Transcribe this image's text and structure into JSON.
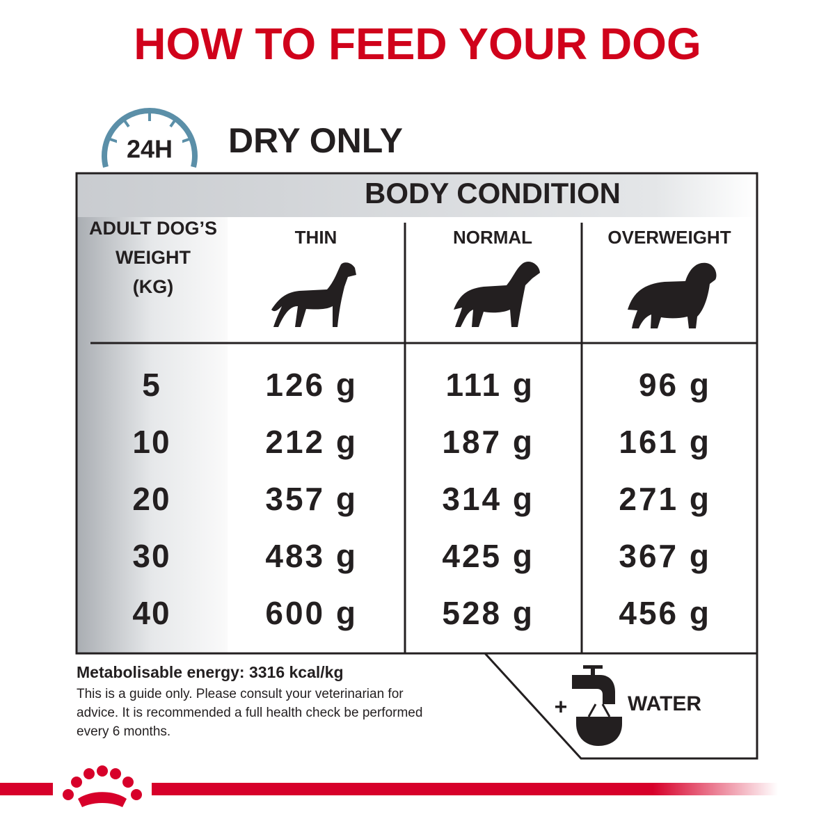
{
  "header": {
    "title": "HOW TO FEED YOUR DOG"
  },
  "section": {
    "badge": "24H",
    "title": "DRY ONLY"
  },
  "table": {
    "group_header": "BODY CONDITION",
    "row_header": [
      "ADULT DOG’S",
      "WEIGHT",
      "(KG)"
    ],
    "columns": [
      "THIN",
      "NORMAL",
      "OVERWEIGHT"
    ],
    "rows": [
      [
        "5",
        "126 g",
        "111 g",
        "96 g"
      ],
      [
        "10",
        "212 g",
        "187 g",
        "161 g"
      ],
      [
        "20",
        "357 g",
        "314 g",
        "271 g"
      ],
      [
        "30",
        "483 g",
        "425 g",
        "367 g"
      ],
      [
        "40",
        "600 g",
        "528 g",
        "456 g"
      ]
    ]
  },
  "footer": {
    "energy": "Metabolisable energy: 3316 kcal/kg",
    "note": [
      "This is a guide only. Please consult your veterinarian for",
      "advice. It is recommended a full health check be performed",
      "every 6 months."
    ],
    "plus": "+",
    "water": "WATER"
  }
}
